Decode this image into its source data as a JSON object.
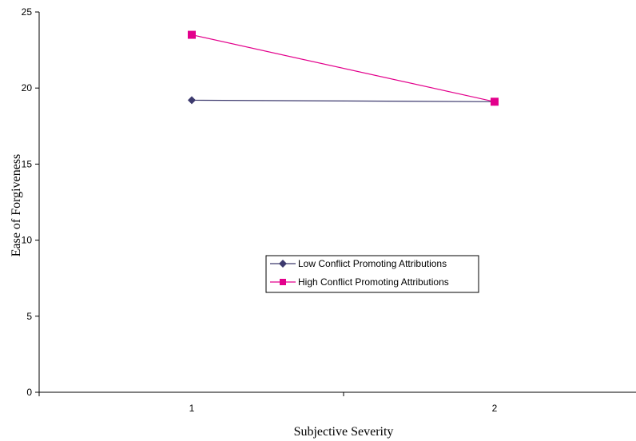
{
  "chart_data": {
    "type": "line",
    "title": "",
    "xlabel": "Subjective Severity",
    "ylabel": "Ease of Forgiveness",
    "x": [
      1,
      2
    ],
    "x_tick_labels": [
      "1",
      "2"
    ],
    "ylim": [
      0,
      25
    ],
    "y_ticks": [
      0,
      5,
      10,
      15,
      20,
      25
    ],
    "grid": false,
    "legend_position": "center-right",
    "series": [
      {
        "name": "Low Conflict Promoting Attributions",
        "values": [
          19.2,
          19.1
        ],
        "color": "#3d3a6e",
        "marker": "diamond"
      },
      {
        "name": "High Conflict Promoting Attributions",
        "values": [
          23.5,
          19.1
        ],
        "color": "#e3008c",
        "marker": "square"
      }
    ]
  }
}
